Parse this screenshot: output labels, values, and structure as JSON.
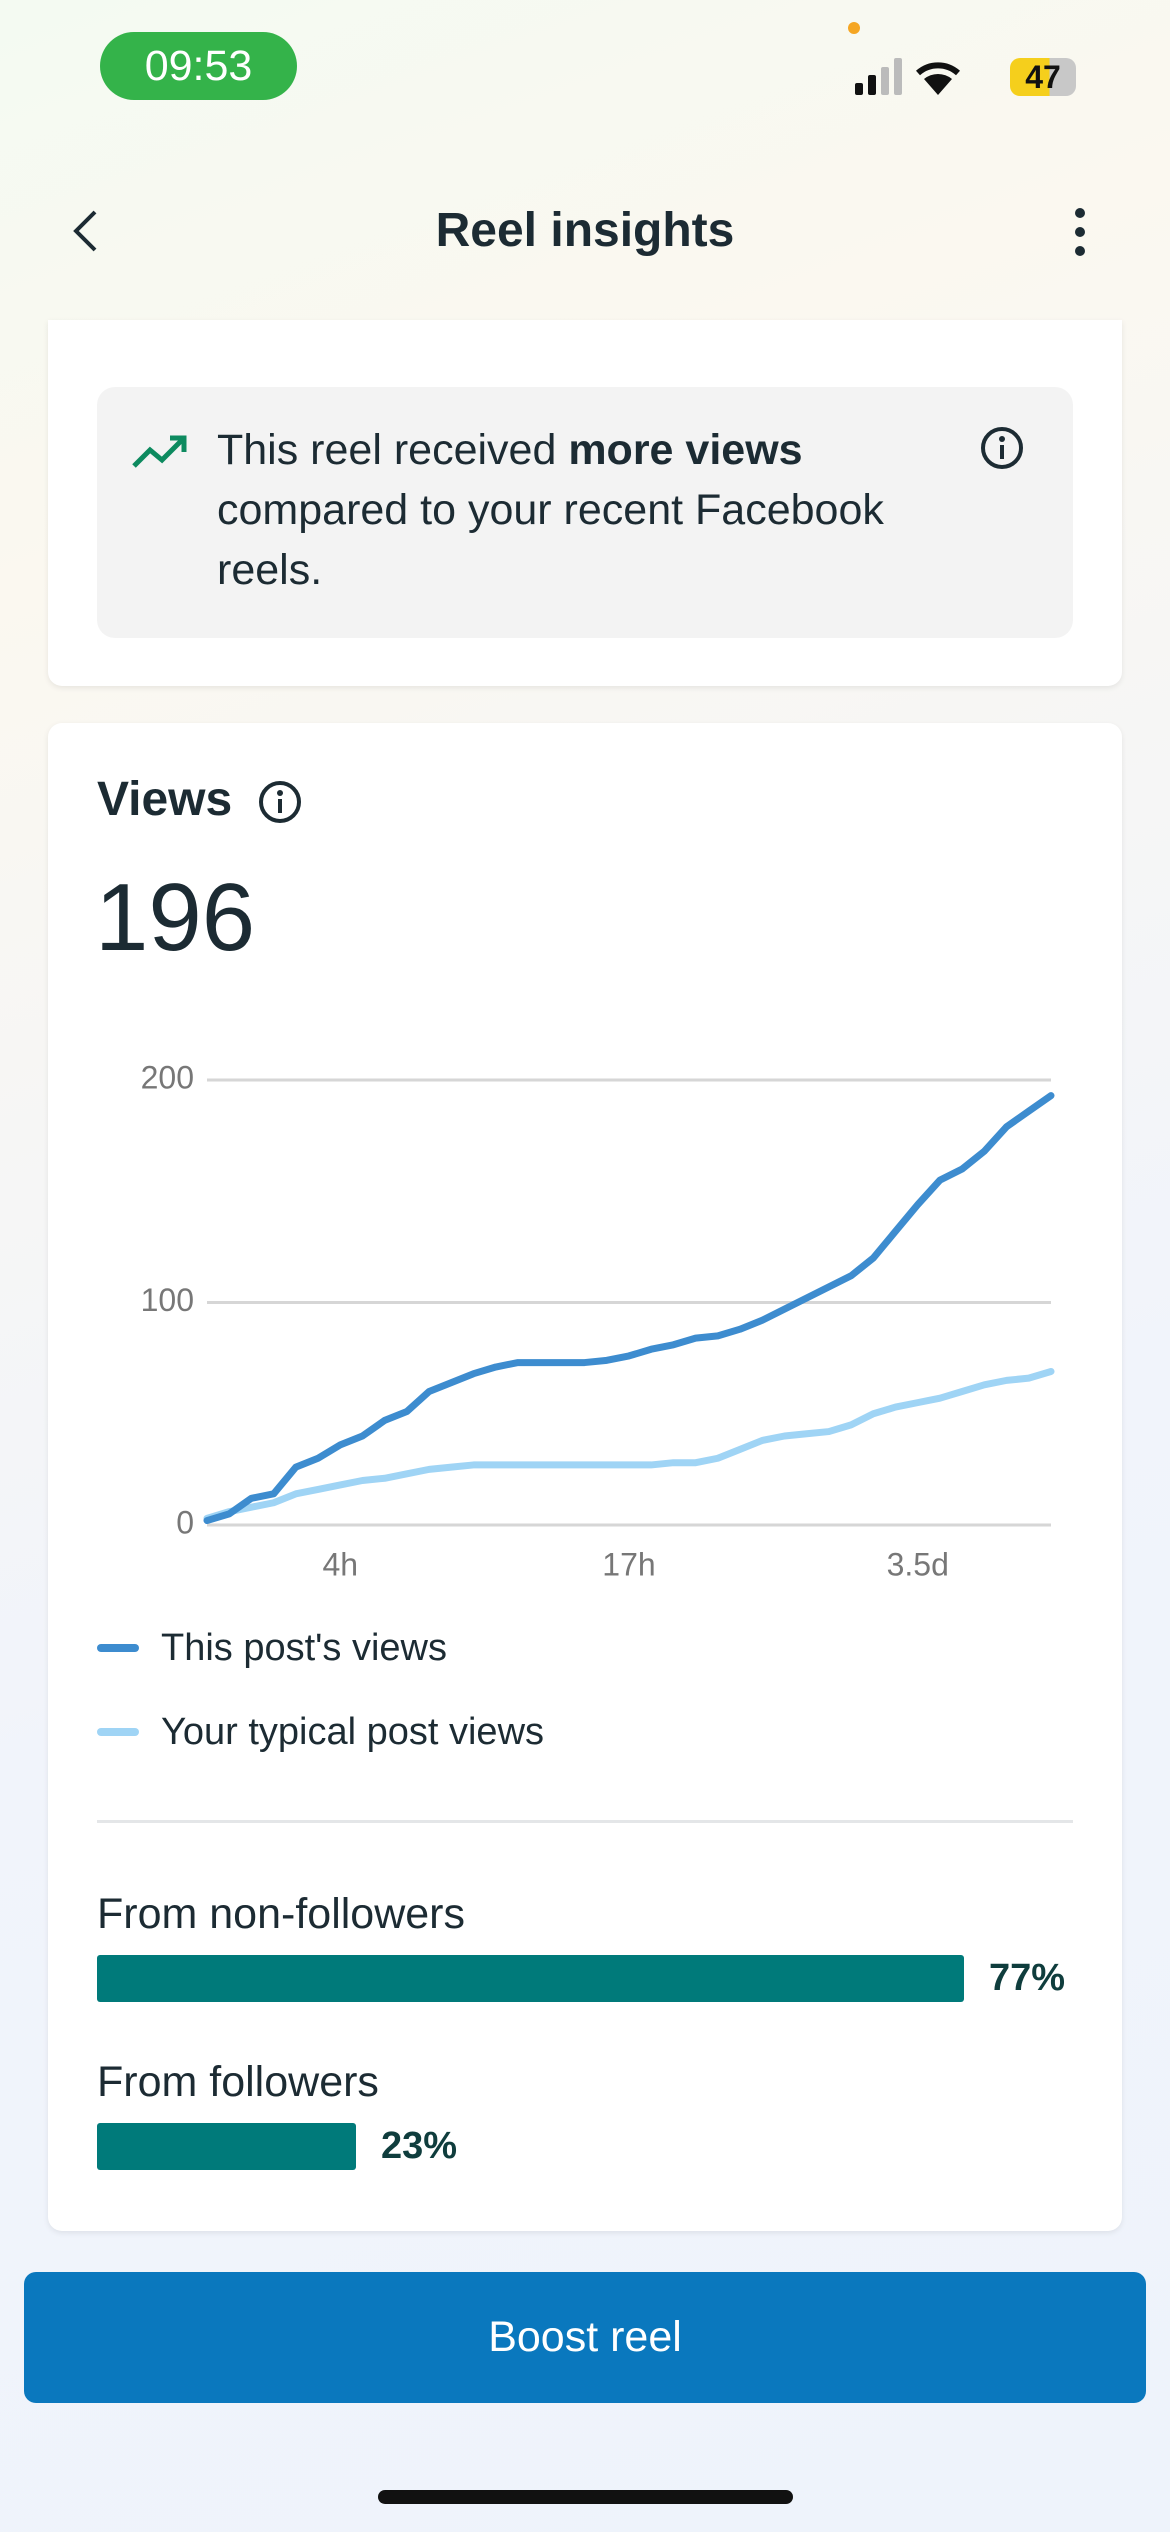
{
  "status_bar": {
    "time": "09:53",
    "battery": "47"
  },
  "header": {
    "title": "Reel insights"
  },
  "banner": {
    "text_before": "This reel received",
    "text_bold": "more views",
    "text_after": "compared to your recent Facebook reels."
  },
  "views": {
    "title": "Views",
    "total": 196
  },
  "chart_data": {
    "type": "line",
    "categories": [
      null,
      null,
      null,
      null,
      null,
      null,
      "4h",
      null,
      null,
      null,
      null,
      null,
      null,
      null,
      null,
      null,
      null,
      null,
      null,
      "17h",
      null,
      null,
      null,
      null,
      null,
      null,
      null,
      null,
      null,
      null,
      null,
      null,
      "3.5d",
      null,
      null,
      null,
      null,
      null,
      null
    ],
    "series": [
      {
        "name": "This post's views",
        "color": "#3d8ccf",
        "values": [
          2,
          5,
          12,
          14,
          26,
          30,
          36,
          40,
          47,
          51,
          60,
          64,
          68,
          71,
          73,
          73,
          73,
          73,
          74,
          76,
          79,
          81,
          84,
          85,
          88,
          92,
          97,
          102,
          107,
          112,
          120,
          132,
          144,
          155,
          160,
          168,
          179,
          186,
          193
        ]
      },
      {
        "name": "Your typical post views",
        "color": "#9fd4f5",
        "values": [
          3,
          6,
          8,
          10,
          14,
          16,
          18,
          20,
          21,
          23,
          25,
          26,
          27,
          27,
          27,
          27,
          27,
          27,
          27,
          27,
          27,
          28,
          28,
          30,
          34,
          38,
          40,
          41,
          42,
          45,
          50,
          53,
          55,
          57,
          60,
          63,
          65,
          66,
          69
        ]
      }
    ],
    "ylim": [
      0,
      200
    ],
    "yticks": [
      0,
      100,
      200
    ],
    "grid": true
  },
  "audience": {
    "color": "#007a7a",
    "rows": [
      {
        "label": "From non-followers",
        "value": 77,
        "value_label": "77%"
      },
      {
        "label": "From followers",
        "value": 23,
        "value_label": "23%"
      }
    ]
  },
  "button": {
    "label": "Boost reel"
  }
}
